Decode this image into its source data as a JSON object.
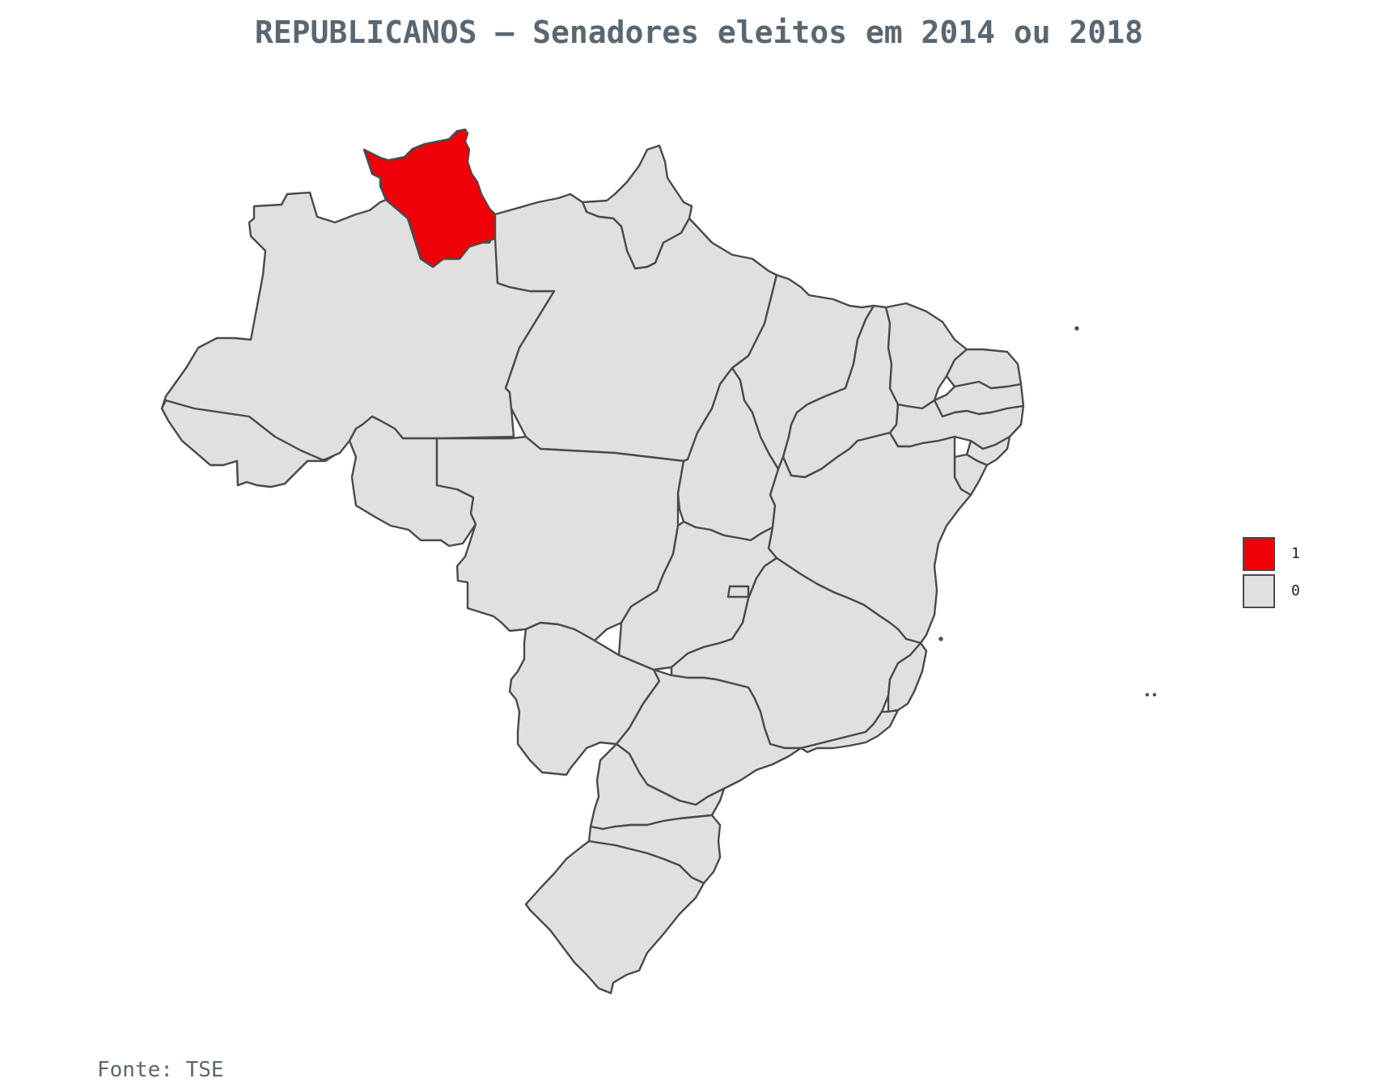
{
  "title": "REPUBLICANOS – Senadores eleitos em 2014 ou 2018",
  "source": "Fonte: TSE",
  "map": {
    "type": "choropleth",
    "region": "Brasil",
    "highlighted_state": "Roraima",
    "highlighted_value": "1",
    "other_value": "0"
  },
  "legend": {
    "entries": [
      {
        "label": "1",
        "color": "#f00008"
      },
      {
        "label": "0",
        "color": "#e0e0e0"
      }
    ]
  },
  "colors": {
    "highlight": "#f00008",
    "base": "#e0e0e0",
    "stroke": "#4a4a4a",
    "title": "#5b6770"
  }
}
